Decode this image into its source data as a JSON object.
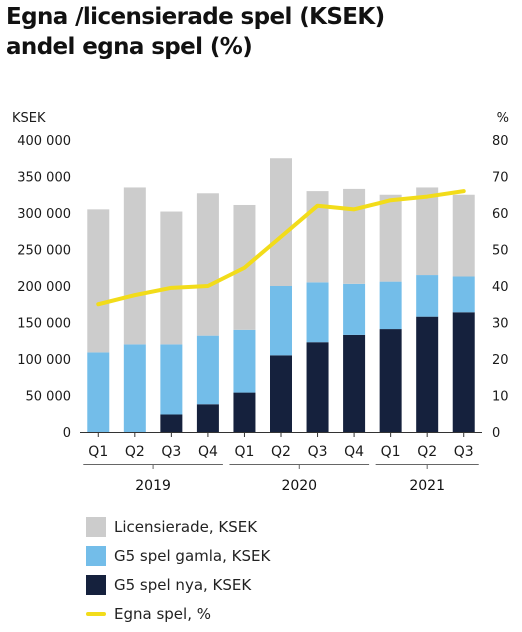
{
  "title_line1": "Egna /licensierade spel (KSEK)",
  "title_line2": "andel egna spel (%)",
  "chart_data": {
    "type": "bar",
    "stacked": true,
    "categories": [
      "Q1",
      "Q2",
      "Q3",
      "Q4",
      "Q1",
      "Q2",
      "Q3",
      "Q4",
      "Q1",
      "Q2",
      "Q3"
    ],
    "years": [
      {
        "label": "2019",
        "from": 0,
        "to": 3
      },
      {
        "label": "2020",
        "from": 4,
        "to": 7
      },
      {
        "label": "2021",
        "from": 8,
        "to": 10
      }
    ],
    "ylabel_left": "KSEK",
    "ylabel_right": "%",
    "ylim_left": [
      0,
      400000
    ],
    "ylim_right": [
      0,
      80
    ],
    "yticks_left": [
      "0",
      "50 000",
      "100 000",
      "150 000",
      "200 000",
      "250 000",
      "300 000",
      "350 000",
      "400 000"
    ],
    "yticks_right": [
      "0",
      "10",
      "20",
      "30",
      "40",
      "50",
      "60",
      "70",
      "80"
    ],
    "series": [
      {
        "name": "G5 spel nya, KSEK",
        "color": "#15213d",
        "axis": "left",
        "values": [
          0,
          0,
          24000,
          38000,
          54000,
          105000,
          123000,
          133000,
          141000,
          158000,
          164000
        ]
      },
      {
        "name": "G5 spel gamla, KSEK",
        "color": "#73bde9",
        "axis": "left",
        "values": [
          109000,
          120000,
          96000,
          94000,
          86000,
          95000,
          82000,
          70000,
          65000,
          57000,
          49000
        ]
      },
      {
        "name": "Licensierade, KSEK",
        "color": "#cccccc",
        "axis": "left",
        "values": [
          196000,
          215000,
          182000,
          195000,
          171000,
          175000,
          125000,
          130000,
          119000,
          120000,
          112000
        ]
      },
      {
        "name": "Egna spel, %",
        "color": "#f2dc1a",
        "axis": "right",
        "type": "line",
        "values": [
          35,
          37.5,
          39.5,
          40,
          45,
          53.5,
          62,
          61,
          63.5,
          64.5,
          66
        ]
      }
    ],
    "legend_order": [
      "Licensierade, KSEK",
      "G5 spel gamla, KSEK",
      "G5 spel nya, KSEK",
      "Egna spel, %"
    ],
    "legend_position": "bottom-left",
    "grid": false
  }
}
